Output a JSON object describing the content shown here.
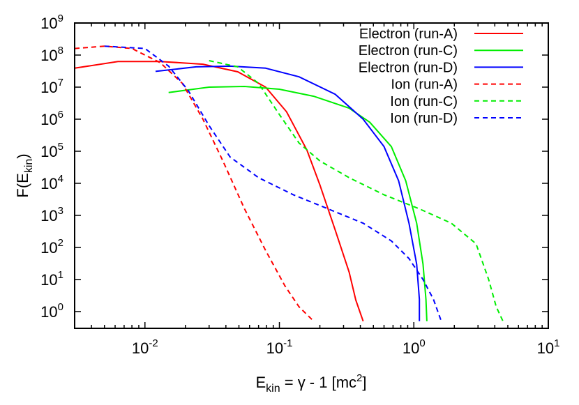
{
  "chart_data": {
    "type": "line",
    "title": "",
    "xlabel": {
      "main": "E",
      "sub": "kin",
      "rest": " = γ - 1 [mc",
      "sup": "2",
      "end": "]"
    },
    "ylabel": {
      "main": "F(E",
      "sub": "kin",
      "end": ")"
    },
    "xscale": "log",
    "yscale": "log",
    "xlim": [
      0.003,
      10
    ],
    "ylim": [
      0.3,
      1000000000.0
    ],
    "grid": false,
    "legend_placement": "top-right",
    "x_ticks": [
      {
        "base": "10",
        "exp": "-2",
        "value": 0.01
      },
      {
        "base": "10",
        "exp": "-1",
        "value": 0.1
      },
      {
        "base": "10",
        "exp": "0",
        "value": 1
      },
      {
        "base": "10",
        "exp": "1",
        "value": 10
      }
    ],
    "y_ticks": [
      {
        "base": "10",
        "exp": "0",
        "value": 1
      },
      {
        "base": "10",
        "exp": "1",
        "value": 10
      },
      {
        "base": "10",
        "exp": "2",
        "value": 100
      },
      {
        "base": "10",
        "exp": "3",
        "value": 1000
      },
      {
        "base": "10",
        "exp": "4",
        "value": 10000
      },
      {
        "base": "10",
        "exp": "5",
        "value": 100000
      },
      {
        "base": "10",
        "exp": "6",
        "value": 1000000
      },
      {
        "base": "10",
        "exp": "7",
        "value": 10000000
      },
      {
        "base": "10",
        "exp": "8",
        "value": 100000000
      },
      {
        "base": "10",
        "exp": "9",
        "value": 1000000000
      }
    ],
    "series": [
      {
        "name": "Electron (run-A)",
        "color": "#ff0000",
        "dash": false,
        "points": [
          [
            0.003,
            39000000.0
          ],
          [
            0.0063,
            63000000.0
          ],
          [
            0.013,
            63000000.0
          ],
          [
            0.027,
            52000000.0
          ],
          [
            0.049,
            30000000.0
          ],
          [
            0.079,
            10000000.0
          ],
          [
            0.113,
            1700000.0
          ],
          [
            0.16,
            110000.0
          ],
          [
            0.2,
            9000.0
          ],
          [
            0.26,
            350
          ],
          [
            0.33,
            17
          ],
          [
            0.37,
            2.3
          ],
          [
            0.42,
            0.5
          ]
        ]
      },
      {
        "name": "Electron (run-C)",
        "color": "#00ee00",
        "dash": false,
        "points": [
          [
            0.015,
            6800000.0
          ],
          [
            0.03,
            10000000.0
          ],
          [
            0.055,
            10500000.0
          ],
          [
            0.1,
            8600000.0
          ],
          [
            0.18,
            5200000.0
          ],
          [
            0.33,
            2200000.0
          ],
          [
            0.47,
            800000.0
          ],
          [
            0.68,
            140000.0
          ],
          [
            0.87,
            12000.0
          ],
          [
            1.05,
            570
          ],
          [
            1.17,
            30
          ],
          [
            1.23,
            2.4
          ],
          [
            1.25,
            0.5
          ]
        ]
      },
      {
        "name": "Electron (run-D)",
        "color": "#0000ff",
        "dash": false,
        "points": [
          [
            0.012,
            31000000.0
          ],
          [
            0.024,
            43000000.0
          ],
          [
            0.043,
            45000000.0
          ],
          [
            0.079,
            39000000.0
          ],
          [
            0.14,
            21000000.0
          ],
          [
            0.26,
            6000000.0
          ],
          [
            0.42,
            1000000.0
          ],
          [
            0.6,
            140000.0
          ],
          [
            0.77,
            12000.0
          ],
          [
            0.92,
            570
          ],
          [
            1.05,
            30
          ],
          [
            1.1,
            2.4
          ],
          [
            1.1,
            0.5
          ]
        ]
      },
      {
        "name": "Ion (run-A)",
        "color": "#ff0000",
        "dash": true,
        "points": [
          [
            0.003,
            160000000.0
          ],
          [
            0.005,
            190000000.0
          ],
          [
            0.008,
            160000000.0
          ],
          [
            0.013,
            58000000.0
          ],
          [
            0.019,
            13000000.0
          ],
          [
            0.027,
            1000000.0
          ],
          [
            0.038,
            50000.0
          ],
          [
            0.055,
            1600.0
          ],
          [
            0.079,
            80
          ],
          [
            0.11,
            6.3
          ],
          [
            0.14,
            1.4
          ],
          [
            0.18,
            0.5
          ]
        ]
      },
      {
        "name": "Ion (run-C)",
        "color": "#00ee00",
        "dash": true,
        "points": [
          [
            0.03,
            67000000.0
          ],
          [
            0.049,
            43000000.0
          ],
          [
            0.07,
            13000000.0
          ],
          [
            0.1,
            1400000.0
          ],
          [
            0.14,
            180000.0
          ],
          [
            0.2,
            50000.0
          ],
          [
            0.33,
            15000.0
          ],
          [
            0.6,
            4400.0
          ],
          [
            1.1,
            1600.0
          ],
          [
            1.9,
            570
          ],
          [
            2.9,
            130
          ],
          [
            3.6,
            10
          ],
          [
            4.1,
            1.4
          ],
          [
            4.6,
            0.5
          ]
        ]
      },
      {
        "name": "Ion (run-D)",
        "color": "#0000ff",
        "dash": true,
        "points": [
          [
            0.005,
            190000000.0
          ],
          [
            0.01,
            160000000.0
          ],
          [
            0.015,
            45000000.0
          ],
          [
            0.021,
            7800000.0
          ],
          [
            0.03,
            630000.0
          ],
          [
            0.043,
            66000.0
          ],
          [
            0.07,
            15000.0
          ],
          [
            0.127,
            4400.0
          ],
          [
            0.23,
            1600.0
          ],
          [
            0.42,
            570
          ],
          [
            0.68,
            160
          ],
          [
            0.92,
            45
          ],
          [
            1.17,
            10
          ],
          [
            1.4,
            2.4
          ],
          [
            1.6,
            0.5
          ]
        ]
      }
    ]
  }
}
